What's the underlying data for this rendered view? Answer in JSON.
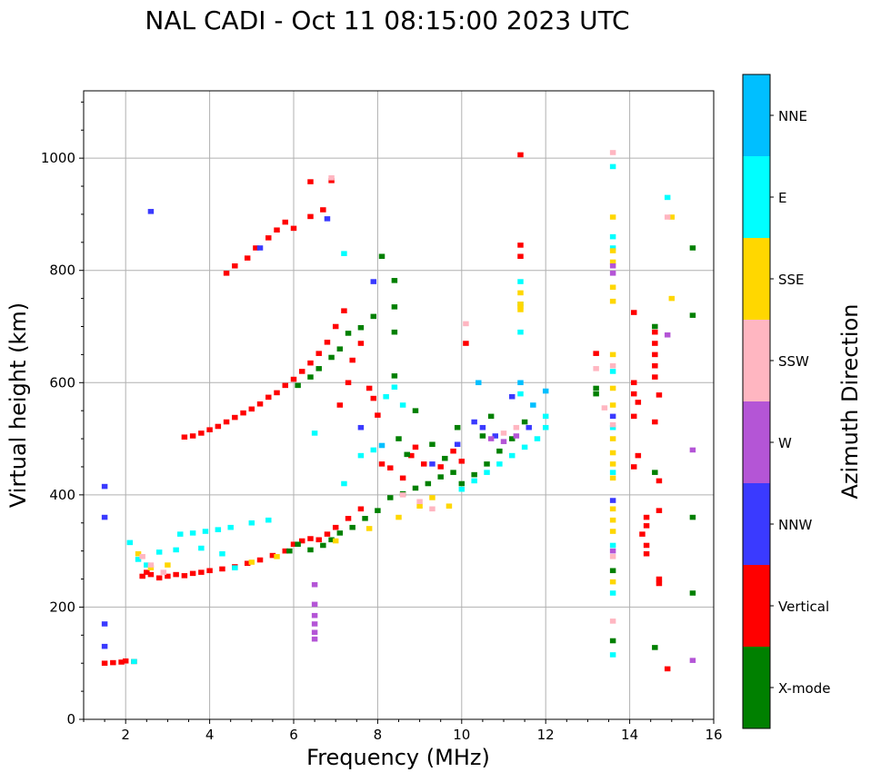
{
  "chart_data": {
    "type": "scatter",
    "title": "NAL CADI - Oct 11 08:15:00 2023 UTC",
    "xlabel": "Frequency (MHz)",
    "ylabel": "Virtual height (km)",
    "xlim": [
      1,
      16
    ],
    "ylim": [
      0,
      1120
    ],
    "x_ticks": [
      2,
      4,
      6,
      8,
      10,
      12,
      14,
      16
    ],
    "y_ticks": [
      0,
      200,
      400,
      600,
      800,
      1000
    ],
    "x_tick_labels": [
      "2",
      "4",
      "6",
      "8",
      "10",
      "12",
      "14",
      "16"
    ],
    "y_tick_labels": [
      "0",
      "200",
      "400",
      "600",
      "800",
      "1000"
    ],
    "grid": true,
    "colorbar": {
      "label": "Azimuth Direction",
      "placement": "right",
      "categories": [
        "X-mode",
        "Vertical",
        "NNW",
        "W",
        "SSW",
        "SSE",
        "E",
        "NNE"
      ],
      "colors": [
        "#008000",
        "#ff0000",
        "#3a3aff",
        "#b455d6",
        "#ffb6c1",
        "#ffd700",
        "#00ffff",
        "#00bfff"
      ]
    },
    "series": [
      {
        "name": "Vertical",
        "color": "#ff0000",
        "points": [
          [
            1.5,
            100
          ],
          [
            1.7,
            101
          ],
          [
            1.9,
            102
          ],
          [
            2.0,
            104
          ],
          [
            2.2,
            103
          ],
          [
            2.4,
            255
          ],
          [
            2.5,
            262
          ],
          [
            2.6,
            258
          ],
          [
            2.8,
            252
          ],
          [
            3.0,
            255
          ],
          [
            3.2,
            258
          ],
          [
            3.4,
            256
          ],
          [
            3.6,
            260
          ],
          [
            3.8,
            262
          ],
          [
            4.0,
            265
          ],
          [
            4.3,
            268
          ],
          [
            4.6,
            272
          ],
          [
            4.9,
            278
          ],
          [
            5.2,
            284
          ],
          [
            5.5,
            292
          ],
          [
            5.8,
            300
          ],
          [
            6.0,
            312
          ],
          [
            6.2,
            318
          ],
          [
            6.4,
            322
          ],
          [
            6.6,
            320
          ],
          [
            6.8,
            330
          ],
          [
            7.0,
            342
          ],
          [
            7.3,
            358
          ],
          [
            7.6,
            375
          ],
          [
            3.4,
            503
          ],
          [
            3.6,
            505
          ],
          [
            3.8,
            510
          ],
          [
            4.0,
            516
          ],
          [
            4.2,
            522
          ],
          [
            4.4,
            530
          ],
          [
            4.6,
            538
          ],
          [
            4.8,
            546
          ],
          [
            5.0,
            553
          ],
          [
            5.2,
            562
          ],
          [
            5.4,
            574
          ],
          [
            5.6,
            582
          ],
          [
            5.8,
            595
          ],
          [
            6.0,
            606
          ],
          [
            6.2,
            620
          ],
          [
            6.4,
            635
          ],
          [
            6.6,
            652
          ],
          [
            6.8,
            672
          ],
          [
            7.0,
            700
          ],
          [
            7.2,
            728
          ],
          [
            4.4,
            795
          ],
          [
            4.6,
            808
          ],
          [
            4.9,
            822
          ],
          [
            5.1,
            840
          ],
          [
            5.4,
            858
          ],
          [
            5.6,
            872
          ],
          [
            5.8,
            886
          ],
          [
            6.0,
            875
          ],
          [
            6.4,
            896
          ],
          [
            6.4,
            958
          ],
          [
            6.7,
            908
          ],
          [
            6.9,
            960
          ],
          [
            7.1,
            560
          ],
          [
            7.3,
            600
          ],
          [
            7.4,
            640
          ],
          [
            7.6,
            670
          ],
          [
            7.8,
            590
          ],
          [
            7.9,
            572
          ],
          [
            8.0,
            542
          ],
          [
            8.1,
            455
          ],
          [
            8.3,
            448
          ],
          [
            8.6,
            430
          ],
          [
            8.9,
            485
          ],
          [
            8.8,
            470
          ],
          [
            9.1,
            455
          ],
          [
            9.5,
            450
          ],
          [
            9.8,
            478
          ],
          [
            10.1,
            670
          ],
          [
            10.0,
            460
          ],
          [
            11.4,
            1006
          ],
          [
            11.4,
            845
          ],
          [
            11.4,
            825
          ],
          [
            13.2,
            652
          ],
          [
            14.1,
            600
          ],
          [
            14.1,
            580
          ],
          [
            14.2,
            565
          ],
          [
            14.1,
            540
          ],
          [
            14.2,
            470
          ],
          [
            14.1,
            450
          ],
          [
            14.1,
            725
          ],
          [
            14.4,
            360
          ],
          [
            14.4,
            345
          ],
          [
            14.3,
            330
          ],
          [
            14.4,
            310
          ],
          [
            14.4,
            295
          ],
          [
            14.7,
            372
          ],
          [
            14.7,
            250
          ],
          [
            14.7,
            242
          ],
          [
            14.7,
            425
          ],
          [
            14.6,
            530
          ],
          [
            14.7,
            578
          ],
          [
            14.6,
            690
          ],
          [
            14.6,
            670
          ],
          [
            14.6,
            650
          ],
          [
            14.6,
            630
          ],
          [
            14.6,
            610
          ],
          [
            14.9,
            90
          ]
        ]
      },
      {
        "name": "X-mode",
        "color": "#008000",
        "points": [
          [
            5.9,
            300
          ],
          [
            6.1,
            312
          ],
          [
            6.4,
            302
          ],
          [
            6.7,
            310
          ],
          [
            6.9,
            320
          ],
          [
            7.1,
            332
          ],
          [
            7.4,
            342
          ],
          [
            7.7,
            358
          ],
          [
            8.0,
            372
          ],
          [
            8.3,
            395
          ],
          [
            8.6,
            402
          ],
          [
            8.9,
            412
          ],
          [
            9.2,
            420
          ],
          [
            9.5,
            432
          ],
          [
            9.8,
            440
          ],
          [
            10.0,
            420
          ],
          [
            10.3,
            436
          ],
          [
            10.6,
            455
          ],
          [
            10.9,
            478
          ],
          [
            11.2,
            500
          ],
          [
            11.5,
            530
          ],
          [
            6.1,
            595
          ],
          [
            6.4,
            610
          ],
          [
            6.6,
            625
          ],
          [
            6.9,
            645
          ],
          [
            7.1,
            660
          ],
          [
            7.3,
            688
          ],
          [
            7.6,
            698
          ],
          [
            7.9,
            718
          ],
          [
            8.1,
            825
          ],
          [
            8.4,
            782
          ],
          [
            8.4,
            735
          ],
          [
            8.4,
            690
          ],
          [
            8.4,
            612
          ],
          [
            8.5,
            500
          ],
          [
            8.7,
            472
          ],
          [
            8.9,
            550
          ],
          [
            9.3,
            490
          ],
          [
            9.6,
            465
          ],
          [
            9.9,
            520
          ],
          [
            10.7,
            540
          ],
          [
            10.5,
            505
          ],
          [
            13.2,
            590
          ],
          [
            13.2,
            580
          ],
          [
            13.6,
            140
          ],
          [
            13.6,
            265
          ],
          [
            14.6,
            128
          ],
          [
            14.6,
            700
          ],
          [
            14.6,
            440
          ],
          [
            15.5,
            840
          ],
          [
            15.5,
            720
          ],
          [
            15.5,
            360
          ],
          [
            15.5,
            225
          ]
        ]
      },
      {
        "name": "E",
        "color": "#00ffff",
        "points": [
          [
            2.2,
            103
          ],
          [
            2.1,
            315
          ],
          [
            2.3,
            285
          ],
          [
            2.5,
            275
          ],
          [
            3.3,
            330
          ],
          [
            3.6,
            332
          ],
          [
            3.9,
            335
          ],
          [
            4.2,
            338
          ],
          [
            4.5,
            342
          ],
          [
            5.0,
            350
          ],
          [
            5.4,
            355
          ],
          [
            2.8,
            298
          ],
          [
            3.2,
            302
          ],
          [
            3.8,
            305
          ],
          [
            4.3,
            295
          ],
          [
            4.6,
            270
          ],
          [
            7.2,
            830
          ],
          [
            7.2,
            420
          ],
          [
            7.6,
            470
          ],
          [
            7.9,
            480
          ],
          [
            8.2,
            575
          ],
          [
            8.4,
            592
          ],
          [
            8.6,
            560
          ],
          [
            10.0,
            410
          ],
          [
            10.3,
            425
          ],
          [
            10.6,
            440
          ],
          [
            10.9,
            455
          ],
          [
            11.2,
            470
          ],
          [
            11.5,
            485
          ],
          [
            11.8,
            500
          ],
          [
            12.0,
            520
          ],
          [
            12.0,
            540
          ],
          [
            11.4,
            580
          ],
          [
            11.4,
            690
          ],
          [
            11.4,
            740
          ],
          [
            11.4,
            780
          ],
          [
            13.6,
            985
          ],
          [
            13.6,
            860
          ],
          [
            13.6,
            840
          ],
          [
            13.6,
            620
          ],
          [
            13.6,
            520
          ],
          [
            13.6,
            440
          ],
          [
            13.6,
            310
          ],
          [
            13.6,
            225
          ],
          [
            13.6,
            115
          ],
          [
            14.9,
            930
          ],
          [
            6.5,
            510
          ]
        ]
      },
      {
        "name": "SSE",
        "color": "#ffd700",
        "points": [
          [
            2.3,
            295
          ],
          [
            2.6,
            270
          ],
          [
            3.0,
            275
          ],
          [
            5.0,
            280
          ],
          [
            5.6,
            290
          ],
          [
            7.0,
            318
          ],
          [
            7.8,
            340
          ],
          [
            8.5,
            360
          ],
          [
            9.0,
            380
          ],
          [
            9.3,
            395
          ],
          [
            9.7,
            380
          ],
          [
            11.4,
            760
          ],
          [
            11.4,
            740
          ],
          [
            11.4,
            735
          ],
          [
            11.4,
            730
          ],
          [
            13.6,
            895
          ],
          [
            13.6,
            835
          ],
          [
            13.6,
            815
          ],
          [
            13.6,
            770
          ],
          [
            13.6,
            745
          ],
          [
            13.6,
            650
          ],
          [
            13.6,
            590
          ],
          [
            13.6,
            560
          ],
          [
            13.6,
            500
          ],
          [
            13.6,
            475
          ],
          [
            13.6,
            455
          ],
          [
            13.6,
            430
          ],
          [
            13.6,
            375
          ],
          [
            13.6,
            355
          ],
          [
            13.6,
            335
          ],
          [
            13.6,
            245
          ],
          [
            15.0,
            895
          ],
          [
            15.0,
            750
          ]
        ]
      },
      {
        "name": "SSW",
        "color": "#ffb6c1",
        "points": [
          [
            2.4,
            290
          ],
          [
            2.6,
            275
          ],
          [
            2.9,
            262
          ],
          [
            6.9,
            965
          ],
          [
            8.6,
            400
          ],
          [
            9.0,
            388
          ],
          [
            9.3,
            375
          ],
          [
            10.1,
            705
          ],
          [
            11.0,
            510
          ],
          [
            11.3,
            520
          ],
          [
            13.2,
            625
          ],
          [
            13.4,
            555
          ],
          [
            13.6,
            1010
          ],
          [
            13.6,
            630
          ],
          [
            13.6,
            525
          ],
          [
            13.6,
            290
          ],
          [
            13.6,
            175
          ],
          [
            14.9,
            895
          ]
        ]
      },
      {
        "name": "NNW",
        "color": "#3a3aff",
        "points": [
          [
            1.5,
            415
          ],
          [
            1.5,
            360
          ],
          [
            1.5,
            170
          ],
          [
            1.5,
            130
          ],
          [
            2.6,
            905
          ],
          [
            5.2,
            840
          ],
          [
            6.8,
            892
          ],
          [
            7.9,
            780
          ],
          [
            7.6,
            520
          ],
          [
            9.3,
            455
          ],
          [
            9.9,
            490
          ],
          [
            10.3,
            530
          ],
          [
            10.5,
            520
          ],
          [
            10.8,
            505
          ],
          [
            11.2,
            575
          ],
          [
            11.6,
            520
          ],
          [
            13.6,
            390
          ],
          [
            13.6,
            540
          ]
        ]
      },
      {
        "name": "W",
        "color": "#b455d6",
        "points": [
          [
            6.5,
            240
          ],
          [
            6.5,
            205
          ],
          [
            6.5,
            185
          ],
          [
            6.5,
            170
          ],
          [
            6.5,
            155
          ],
          [
            6.5,
            143
          ],
          [
            10.7,
            500
          ],
          [
            11.0,
            495
          ],
          [
            11.3,
            505
          ],
          [
            13.6,
            808
          ],
          [
            13.6,
            795
          ],
          [
            13.6,
            300
          ],
          [
            14.9,
            685
          ],
          [
            15.5,
            480
          ],
          [
            15.5,
            105
          ]
        ]
      },
      {
        "name": "NNE",
        "color": "#00bfff",
        "points": [
          [
            8.1,
            488
          ],
          [
            10.4,
            600
          ],
          [
            11.4,
            600
          ],
          [
            11.7,
            560
          ],
          [
            12.0,
            585
          ]
        ]
      }
    ]
  }
}
